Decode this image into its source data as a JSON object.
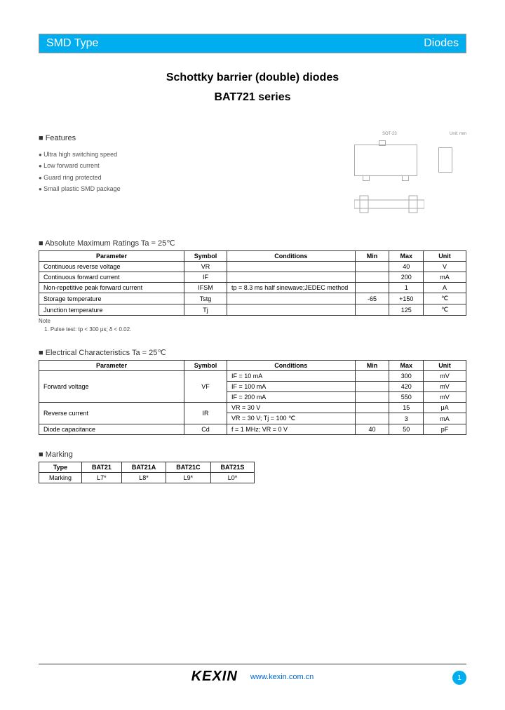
{
  "header": {
    "left": "SMD Type",
    "right": "Diodes"
  },
  "title": {
    "line1": "Schottky barrier (double) diodes",
    "line2": "BAT721 series"
  },
  "features": {
    "head": "Features",
    "items": [
      "Ultra high switching speed",
      "Low forward current",
      "Guard ring protected",
      "Small plastic SMD package"
    ]
  },
  "diagram": {
    "label_top": "SOT-23",
    "label_right": "Unit: mm"
  },
  "abs_max": {
    "head": "Absolute Maximum Ratings Ta = 25℃",
    "cols": [
      "Parameter",
      "Symbol",
      "Conditions",
      "Min",
      "Max",
      "Unit"
    ],
    "rows": [
      [
        "Continuous reverse voltage",
        "VR",
        "",
        "",
        "40",
        "V"
      ],
      [
        "Continuous forward current",
        "IF",
        "",
        "",
        "200",
        "mA"
      ],
      [
        "Non-repetitive peak forward current",
        "IFSM",
        "tp = 8.3 ms half sinewave;JEDEC method",
        "",
        "1",
        "A"
      ],
      [
        "Storage temperature",
        "Tstg",
        "",
        "-65",
        "+150",
        "℃"
      ],
      [
        "Junction temperature",
        "Tj",
        "",
        "",
        "125",
        "℃"
      ]
    ],
    "note_label": "Note",
    "note": "1. Pulse test: tp < 300 μs; δ < 0.02."
  },
  "elec": {
    "head": "Electrical Characteristics Ta = 25℃",
    "cols": [
      "Parameter",
      "Symbol",
      "Conditions",
      "Min",
      "Max",
      "Unit"
    ],
    "rows": [
      {
        "param": "Forward voltage",
        "symbol": "VF",
        "span": 3,
        "sub": [
          [
            "IF = 10 mA",
            "",
            "300",
            "mV"
          ],
          [
            "IF = 100 mA",
            "",
            "420",
            "mV"
          ],
          [
            "IF = 200 mA",
            "",
            "550",
            "mV"
          ]
        ]
      },
      {
        "param": "Reverse current",
        "symbol": "IR",
        "span": 2,
        "sub": [
          [
            "VR = 30 V",
            "",
            "15",
            "μA"
          ],
          [
            "VR = 30 V; Tj = 100 ℃",
            "",
            "3",
            "mA"
          ]
        ]
      },
      {
        "param": "Diode capacitance",
        "symbol": "Cd",
        "span": 1,
        "sub": [
          [
            "f = 1 MHz; VR = 0 V",
            "40",
            "50",
            "pF"
          ]
        ]
      }
    ]
  },
  "marking": {
    "head": "Marking",
    "cols": [
      "Type",
      "BAT21",
      "BAT21A",
      "BAT21C",
      "BAT21S"
    ],
    "row": [
      "Marking",
      "L7*",
      "L8*",
      "L9*",
      "L0*"
    ]
  },
  "footer": {
    "logo": "KEXIN",
    "url": "www.kexin.com.cn",
    "page": "1"
  },
  "colors": {
    "header_bg": "#00aef0",
    "link": "#0066cc"
  }
}
